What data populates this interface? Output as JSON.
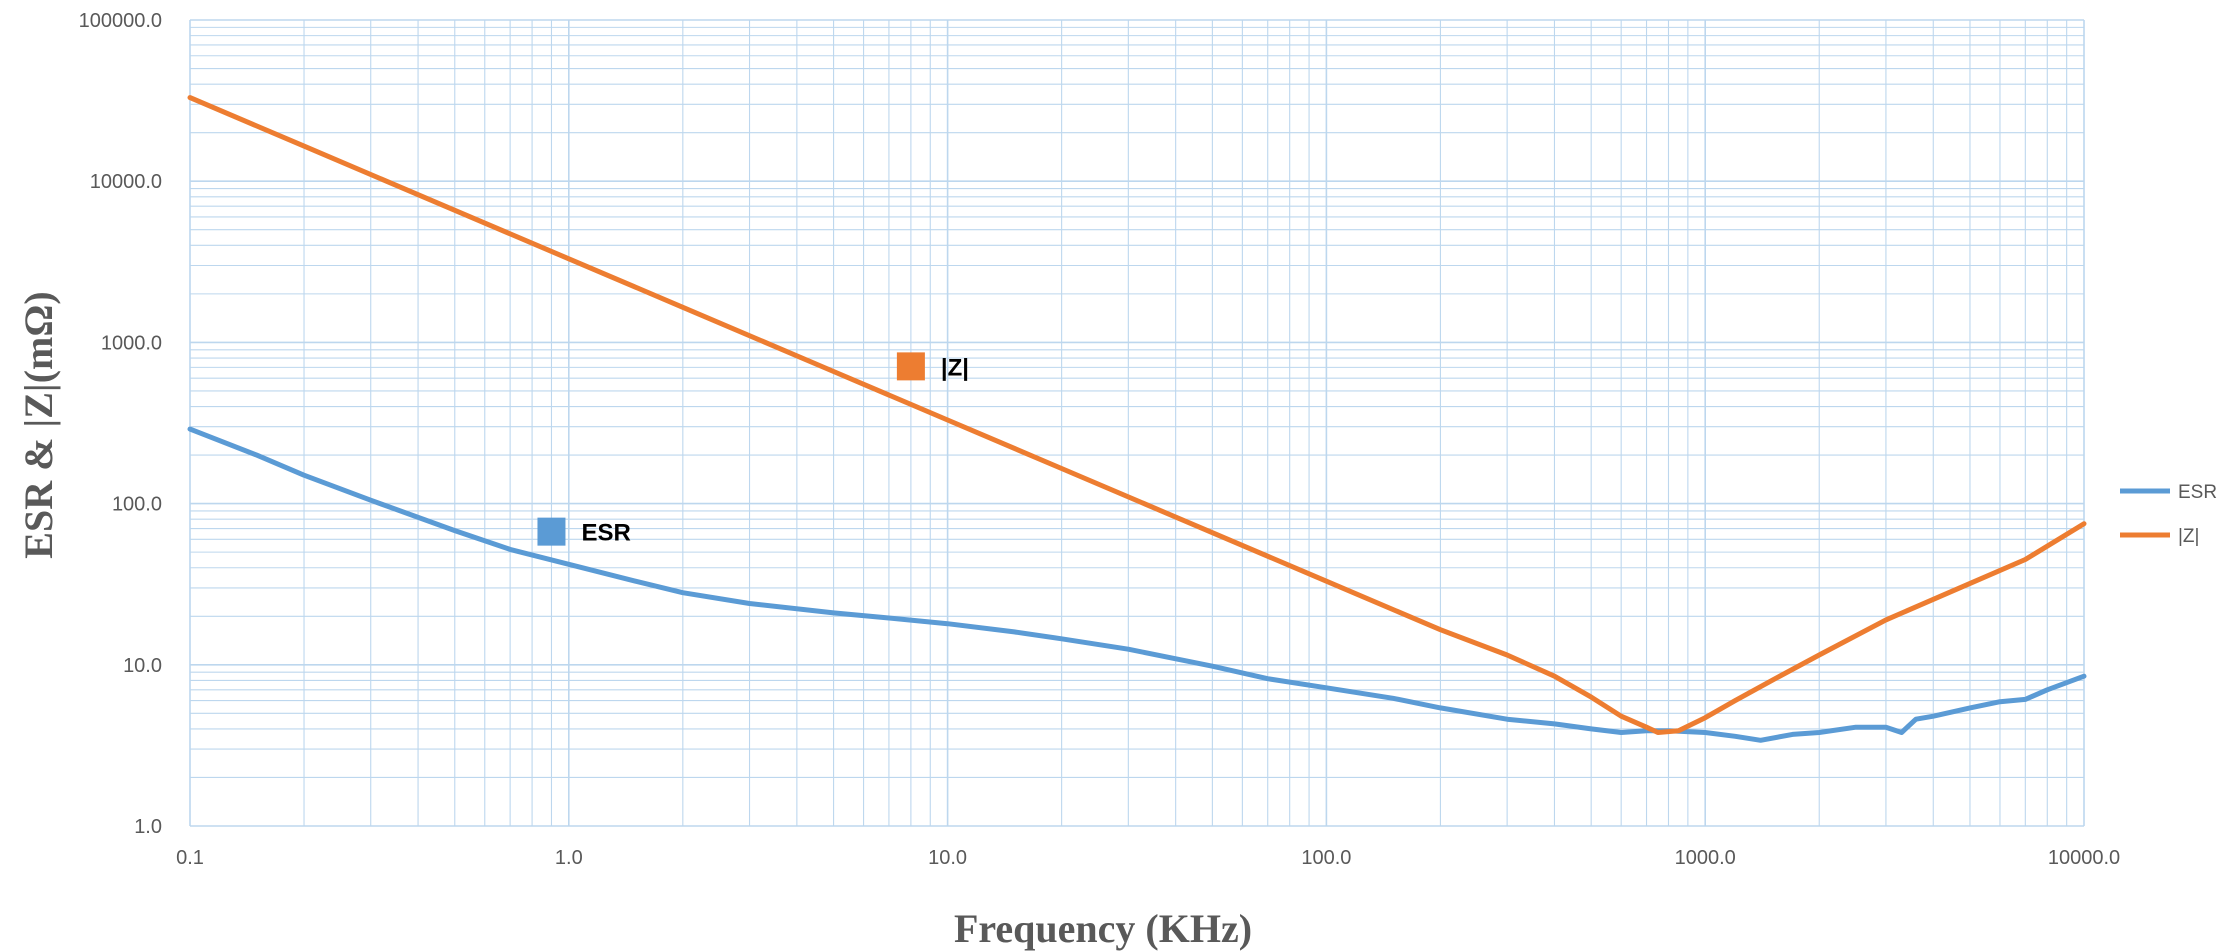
{
  "chart_data": {
    "type": "line",
    "xlabel": "Frequency (KHz)",
    "ylabel": "ESR & |Z|(mΩ)",
    "x_scale": "log",
    "y_scale": "log",
    "xlim": [
      0.1,
      10000.0
    ],
    "ylim": [
      1.0,
      100000.0
    ],
    "x_ticks": [
      "0.1",
      "1.0",
      "10.0",
      "100.0",
      "1000.0",
      "10000.0"
    ],
    "y_ticks": [
      "1.0",
      "10.0",
      "100.0",
      "1000.0",
      "10000.0",
      "100000.0"
    ],
    "grid": true,
    "legend_position": "right",
    "series": [
      {
        "name": "ESR",
        "color": "#5B9BD5",
        "points": [
          [
            0.1,
            290
          ],
          [
            0.15,
            200
          ],
          [
            0.2,
            150
          ],
          [
            0.3,
            105
          ],
          [
            0.5,
            68
          ],
          [
            0.7,
            52
          ],
          [
            1.0,
            42
          ],
          [
            1.5,
            33
          ],
          [
            2.0,
            28
          ],
          [
            3.0,
            24
          ],
          [
            5.0,
            21
          ],
          [
            7.0,
            19.5
          ],
          [
            10.0,
            18
          ],
          [
            15.0,
            16
          ],
          [
            20.0,
            14.5
          ],
          [
            30.0,
            12.5
          ],
          [
            50.0,
            9.8
          ],
          [
            70.0,
            8.2
          ],
          [
            100.0,
            7.2
          ],
          [
            150.0,
            6.2
          ],
          [
            200.0,
            5.4
          ],
          [
            300.0,
            4.6
          ],
          [
            400.0,
            4.3
          ],
          [
            500.0,
            4.0
          ],
          [
            600.0,
            3.8
          ],
          [
            700.0,
            3.9
          ],
          [
            800.0,
            3.9
          ],
          [
            1000.0,
            3.8
          ],
          [
            1200.0,
            3.6
          ],
          [
            1400.0,
            3.4
          ],
          [
            1700.0,
            3.7
          ],
          [
            2000.0,
            3.8
          ],
          [
            2500.0,
            4.1
          ],
          [
            3000.0,
            4.1
          ],
          [
            3300.0,
            3.8
          ],
          [
            3600.0,
            4.6
          ],
          [
            4000.0,
            4.8
          ],
          [
            5000.0,
            5.4
          ],
          [
            6000.0,
            5.9
          ],
          [
            7000.0,
            6.1
          ],
          [
            8000.0,
            7.0
          ],
          [
            10000.0,
            8.5
          ]
        ]
      },
      {
        "name": "|Z|",
        "color": "#ED7D31",
        "points": [
          [
            0.1,
            33000
          ],
          [
            0.2,
            16500
          ],
          [
            0.5,
            6600
          ],
          [
            1.0,
            3300
          ],
          [
            2.0,
            1650
          ],
          [
            5.0,
            660
          ],
          [
            10.0,
            330
          ],
          [
            20.0,
            165
          ],
          [
            50.0,
            66
          ],
          [
            100.0,
            33
          ],
          [
            200.0,
            16.5
          ],
          [
            300.0,
            11.5
          ],
          [
            400.0,
            8.5
          ],
          [
            500.0,
            6.3
          ],
          [
            600.0,
            4.8
          ],
          [
            700.0,
            4.1
          ],
          [
            750.0,
            3.8
          ],
          [
            850.0,
            3.9
          ],
          [
            1000.0,
            4.7
          ],
          [
            1200.0,
            6.0
          ],
          [
            1500.0,
            8.0
          ],
          [
            2000.0,
            11.5
          ],
          [
            3000.0,
            19
          ],
          [
            5000.0,
            32
          ],
          [
            7000.0,
            45
          ],
          [
            10000.0,
            75
          ]
        ]
      }
    ],
    "annotations": [
      {
        "text": "|Z|",
        "color": "#ED7D31",
        "x": 8.0,
        "y": 710
      },
      {
        "text": "ESR",
        "color": "#5B9BD5",
        "x": 0.9,
        "y": 67
      }
    ]
  }
}
